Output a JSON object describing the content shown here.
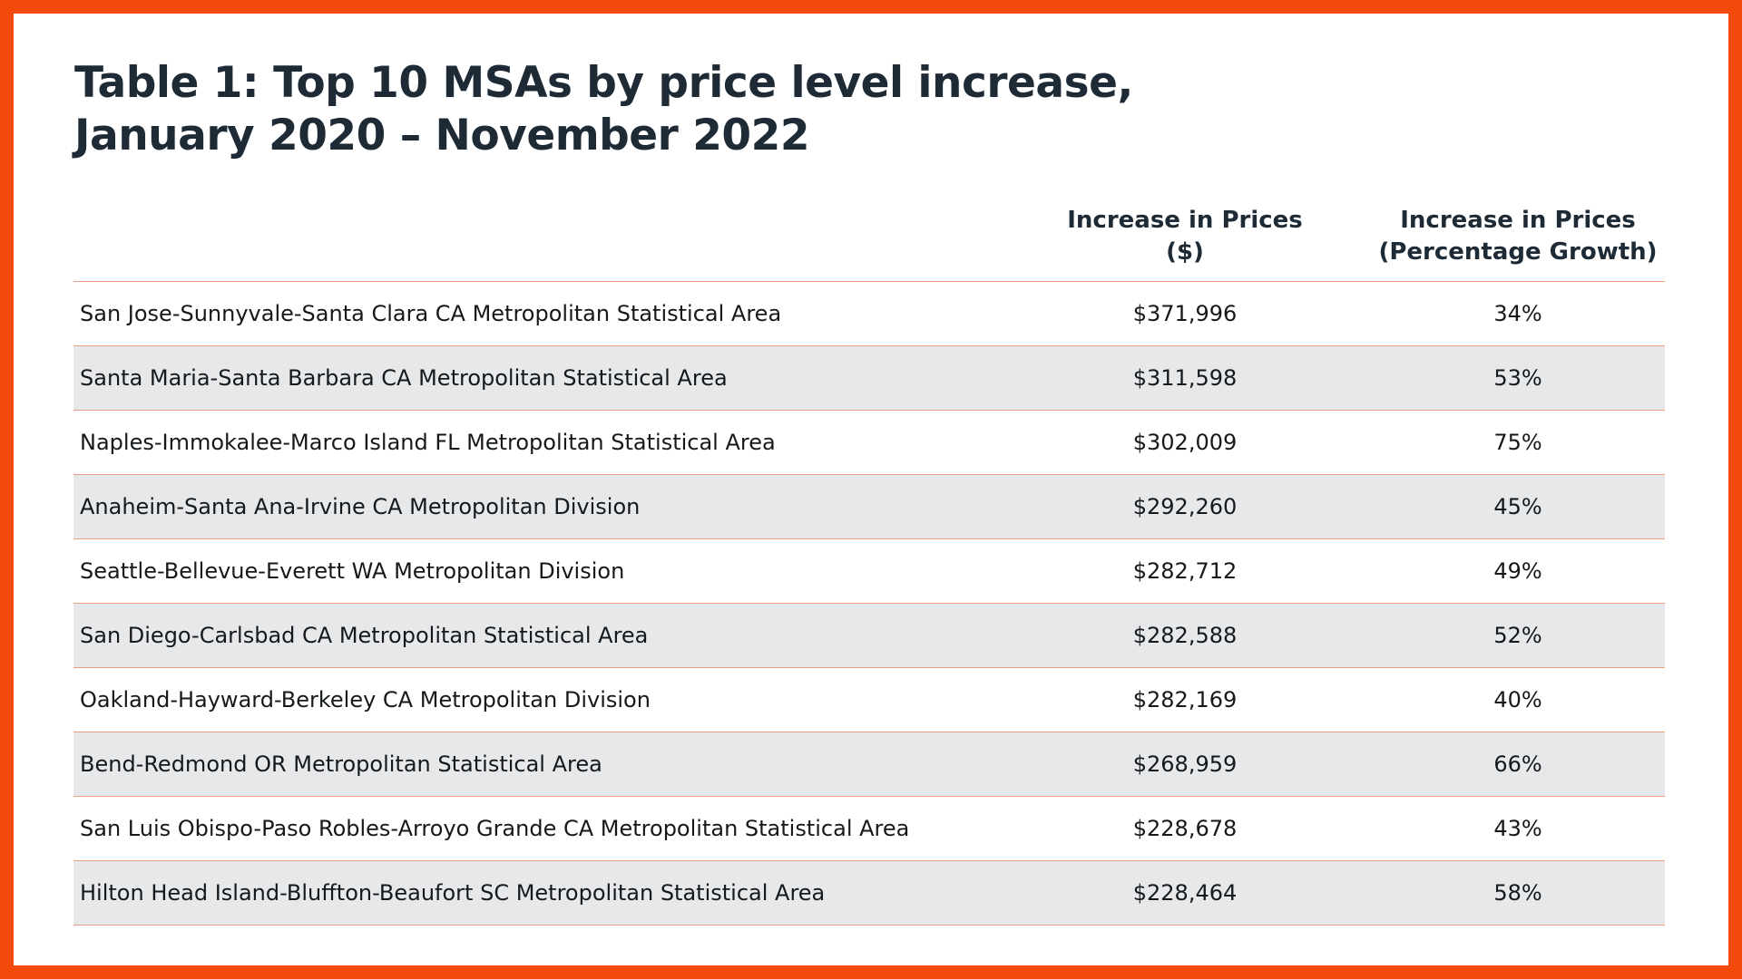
{
  "chart_data": {
    "type": "table",
    "title_lines": [
      "Table 1: Top 10 MSAs by price level increase,",
      "January 2020 – November 2022"
    ],
    "columns": [
      {
        "line1": "",
        "line2": ""
      },
      {
        "line1": "Increase in Prices",
        "line2": "($)"
      },
      {
        "line1": "Increase in Prices",
        "line2": "(Percentage Growth)"
      }
    ],
    "rows": [
      {
        "name": "San Jose-Sunnyvale-Santa Clara CA Metropolitan Statistical Area",
        "dollar": "$371,996",
        "pct": "34%"
      },
      {
        "name": "Santa Maria-Santa Barbara CA Metropolitan Statistical Area",
        "dollar": "$311,598",
        "pct": "53%"
      },
      {
        "name": "Naples-Immokalee-Marco Island FL Metropolitan Statistical Area",
        "dollar": "$302,009",
        "pct": "75%"
      },
      {
        "name": "Anaheim-Santa Ana-Irvine CA Metropolitan Division",
        "dollar": "$292,260",
        "pct": "45%"
      },
      {
        "name": "Seattle-Bellevue-Everett WA Metropolitan Division",
        "dollar": "$282,712",
        "pct": "49%"
      },
      {
        "name": "San Diego-Carlsbad CA Metropolitan Statistical Area",
        "dollar": "$282,588",
        "pct": "52%"
      },
      {
        "name": "Oakland-Hayward-Berkeley CA Metropolitan Division",
        "dollar": "$282,169",
        "pct": "40%"
      },
      {
        "name": "Bend-Redmond OR Metropolitan Statistical Area",
        "dollar": "$268,959",
        "pct": "66%"
      },
      {
        "name": "San Luis Obispo-Paso Robles-Arroyo Grande CA Metropolitan Statistical Area",
        "dollar": "$228,678",
        "pct": "43%"
      },
      {
        "name": "Hilton Head Island-Bluffton-Beaufort SC Metropolitan Statistical Area",
        "dollar": "$228,464",
        "pct": "58%"
      }
    ]
  },
  "colors": {
    "frame": "#f24a0c",
    "title_text": "#1e2b36",
    "row_alt": "#e7e8ea",
    "divider": "#ef9c80"
  }
}
